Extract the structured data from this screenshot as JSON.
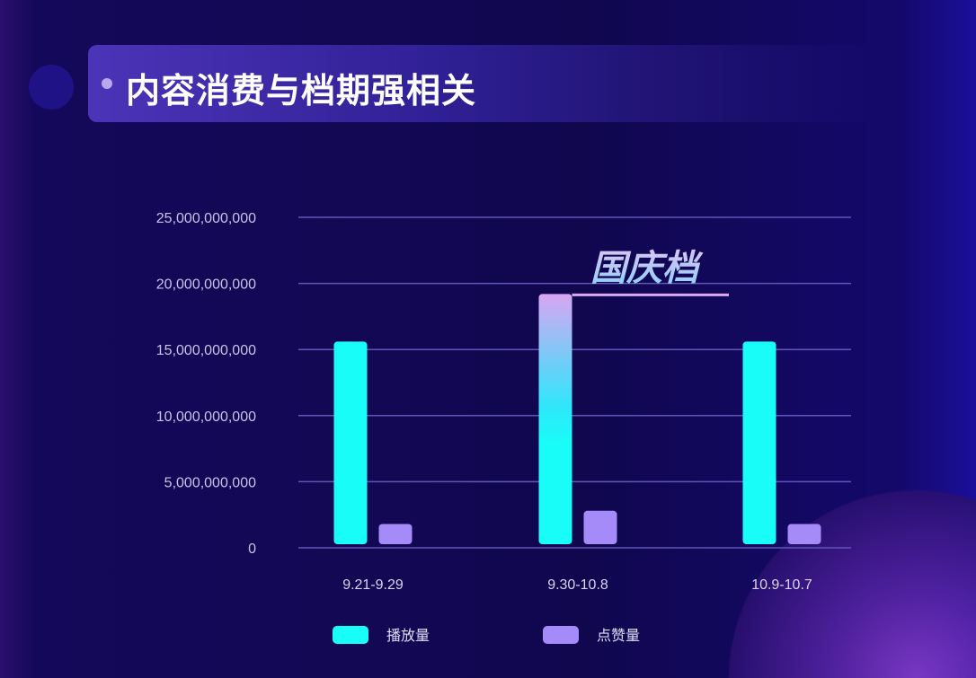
{
  "header": {
    "title": "内容消费与档期强相关"
  },
  "chart_data": {
    "type": "bar",
    "title": "",
    "xlabel": "",
    "ylabel": "",
    "categories": [
      "9.21-9.29",
      "9.30-10.8",
      "10.9-10.7"
    ],
    "series": [
      {
        "name": "播放量",
        "values": [
          15600000000,
          19200000000,
          15600000000
        ],
        "color": "#19fdf8"
      },
      {
        "name": "点赞量",
        "values": [
          1800000000,
          2800000000,
          1800000000
        ],
        "color": "#a48bf7"
      }
    ],
    "ylim": [
      0,
      25000000000
    ],
    "yticks": [
      0,
      5000000000,
      10000000000,
      15000000000,
      20000000000,
      25000000000
    ],
    "ytick_labels": [
      "0",
      "5,000,000,000",
      "10,000,000,000",
      "15,000,000,000",
      "20,000,000,000",
      "25,000,000,000"
    ],
    "grid": true,
    "legend_position": "bottom",
    "annotation": {
      "text": "国庆档",
      "category": "9.30-10.8"
    }
  }
}
